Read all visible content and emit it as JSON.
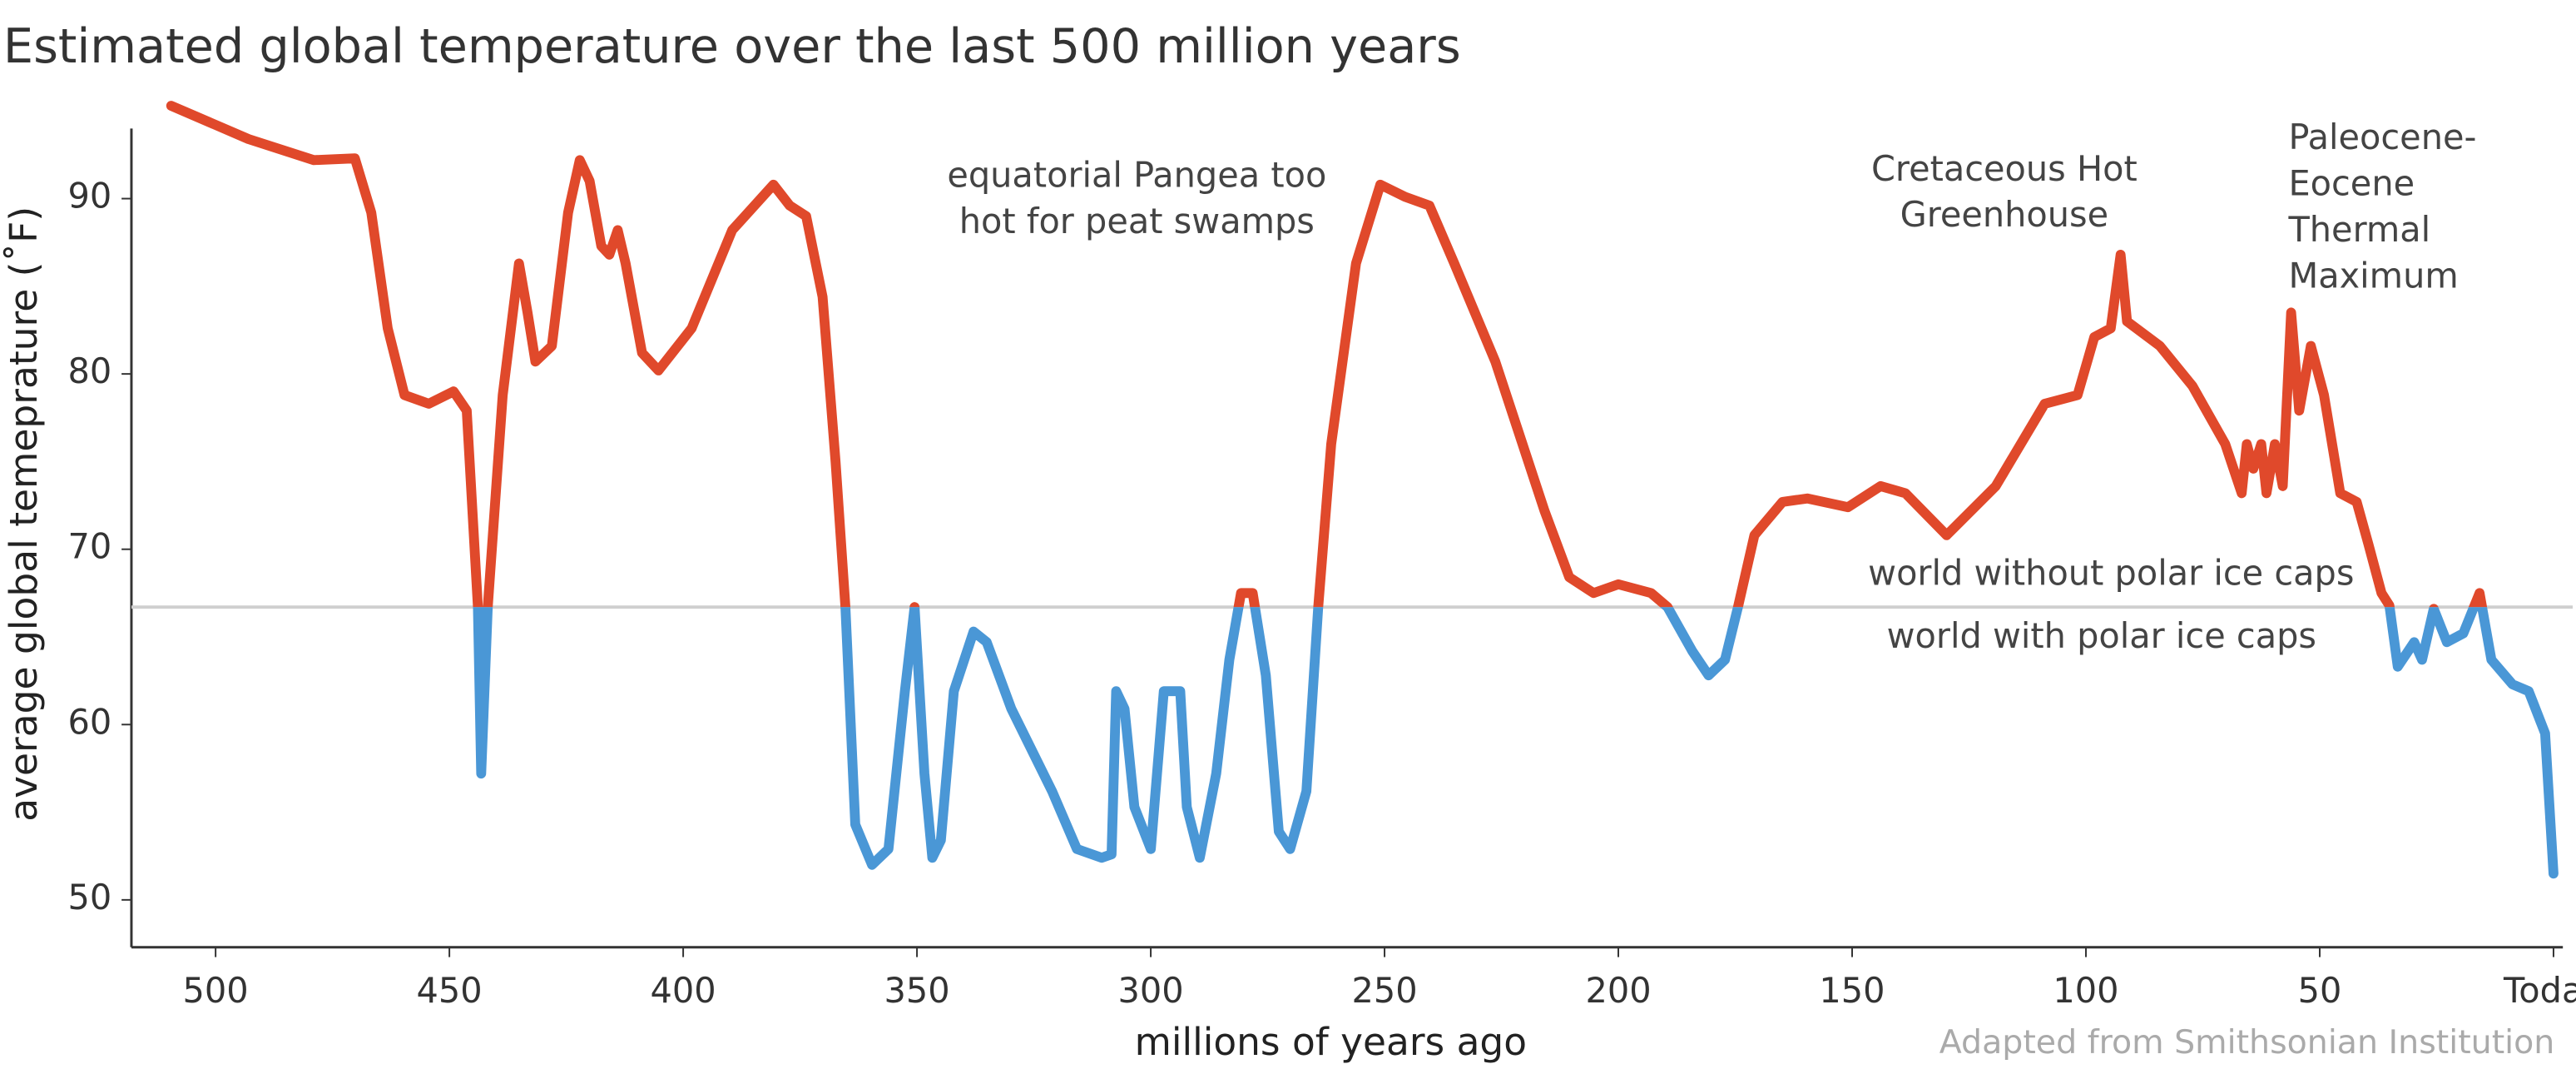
{
  "chart_data": {
    "type": "line",
    "title": "Estimated global temperature over the last 500 million years",
    "xlabel": "millions of years ago",
    "ylabel": "average global temeprature (˚F)",
    "source": "Adapted from Smithsonian Institution",
    "xlim": [
      518,
      -2
    ],
    "ylim": [
      47.3,
      94
    ],
    "xticks": [
      500,
      450,
      400,
      350,
      300,
      250,
      200,
      150,
      100,
      50,
      {
        "value": 0,
        "label": "Today"
      }
    ],
    "yticks": [
      50,
      60,
      70,
      80,
      90
    ],
    "reference_line": {
      "value": 66.7,
      "color": "#cfcfcf",
      "labels": [
        "world without polar ice caps",
        "world with polar ice caps"
      ]
    },
    "annotations": [
      [
        "equatorial Pangea too",
        "hot for peat swamps"
      ],
      [
        "Cretaceous Hot",
        "Greenhouse"
      ],
      [
        "Paleocene-",
        "Eocene",
        "Thermal",
        "Maximum"
      ]
    ],
    "series": [
      {
        "above_color": "#e0492b",
        "below_color": "#4a97d6",
        "x": [
          509.5,
          493.0,
          479.0,
          470.2,
          466.7,
          463.2,
          459.6,
          454.4,
          449.1,
          446.3,
          443.9,
          443.2,
          441.8,
          438.6,
          435.1,
          433.3,
          431.6,
          428.1,
          424.6,
          422.1,
          420.0,
          417.5,
          415.8,
          414.0,
          412.3,
          408.8,
          405.3,
          398.2,
          389.5,
          380.7,
          377.2,
          373.7,
          370.2,
          367.4,
          365.3,
          363.2,
          359.6,
          356.1,
          352.6,
          350.5,
          348.4,
          346.7,
          344.9,
          342.1,
          337.9,
          335.1,
          329.8,
          321.1,
          315.8,
          310.5,
          308.4,
          307.4,
          305.6,
          303.5,
          300.0,
          297.2,
          293.7,
          292.3,
          289.5,
          286.0,
          283.2,
          280.7,
          278.2,
          275.4,
          272.6,
          270.2,
          266.7,
          264.2,
          261.4,
          256.1,
          250.9,
          245.6,
          240.4,
          235.1,
          226.3,
          215.8,
          210.5,
          205.3,
          200.0,
          193.0,
          189.5,
          184.2,
          180.7,
          177.2,
          174.4,
          170.9,
          164.9,
          159.6,
          150.9,
          143.9,
          138.6,
          129.8,
          119.3,
          108.8,
          101.8,
          98.2,
          94.7,
          92.6,
          91.2,
          84.2,
          77.2,
          70.2,
          66.7,
          65.6,
          64.2,
          62.5,
          61.4,
          59.6,
          57.9,
          56.1,
          54.4,
          51.9,
          49.1,
          45.6,
          42.1,
          39.6,
          36.8,
          35.1,
          33.3,
          29.8,
          28.1,
          25.6,
          22.8,
          19.3,
          15.8,
          13.3,
          8.8,
          5.3,
          1.8,
          0.0
        ],
        "values": [
          95.3,
          93.4,
          92.2,
          92.3,
          89.2,
          82.6,
          78.8,
          78.3,
          79.0,
          77.9,
          66.7,
          57.2,
          66.7,
          78.8,
          86.3,
          83.5,
          80.7,
          81.6,
          89.2,
          92.2,
          91.0,
          87.3,
          86.8,
          88.2,
          86.3,
          81.2,
          80.2,
          82.6,
          88.2,
          90.8,
          89.6,
          89.0,
          84.4,
          75.0,
          66.7,
          54.3,
          52.0,
          52.9,
          61.9,
          66.7,
          57.2,
          52.4,
          53.4,
          61.9,
          65.3,
          64.7,
          60.9,
          56.2,
          52.9,
          52.4,
          52.6,
          61.9,
          60.9,
          55.3,
          52.9,
          61.9,
          61.9,
          55.3,
          52.4,
          57.2,
          63.7,
          67.5,
          67.5,
          62.8,
          53.9,
          52.9,
          56.2,
          66.7,
          76.0,
          86.3,
          90.8,
          90.1,
          89.6,
          86.3,
          80.7,
          72.2,
          68.4,
          67.5,
          68.0,
          67.5,
          66.7,
          64.2,
          62.8,
          63.7,
          66.7,
          70.8,
          72.7,
          72.9,
          72.4,
          73.6,
          73.2,
          70.8,
          73.6,
          78.3,
          78.8,
          82.1,
          82.6,
          86.8,
          83.0,
          81.6,
          79.3,
          76.0,
          73.2,
          76.0,
          74.6,
          76.0,
          73.2,
          76.0,
          73.6,
          83.5,
          77.9,
          81.6,
          78.8,
          73.2,
          72.7,
          70.3,
          67.5,
          66.8,
          63.3,
          64.7,
          63.7,
          66.6,
          64.7,
          65.2,
          67.5,
          63.7,
          62.3,
          61.9,
          59.5,
          51.5
        ]
      }
    ]
  }
}
